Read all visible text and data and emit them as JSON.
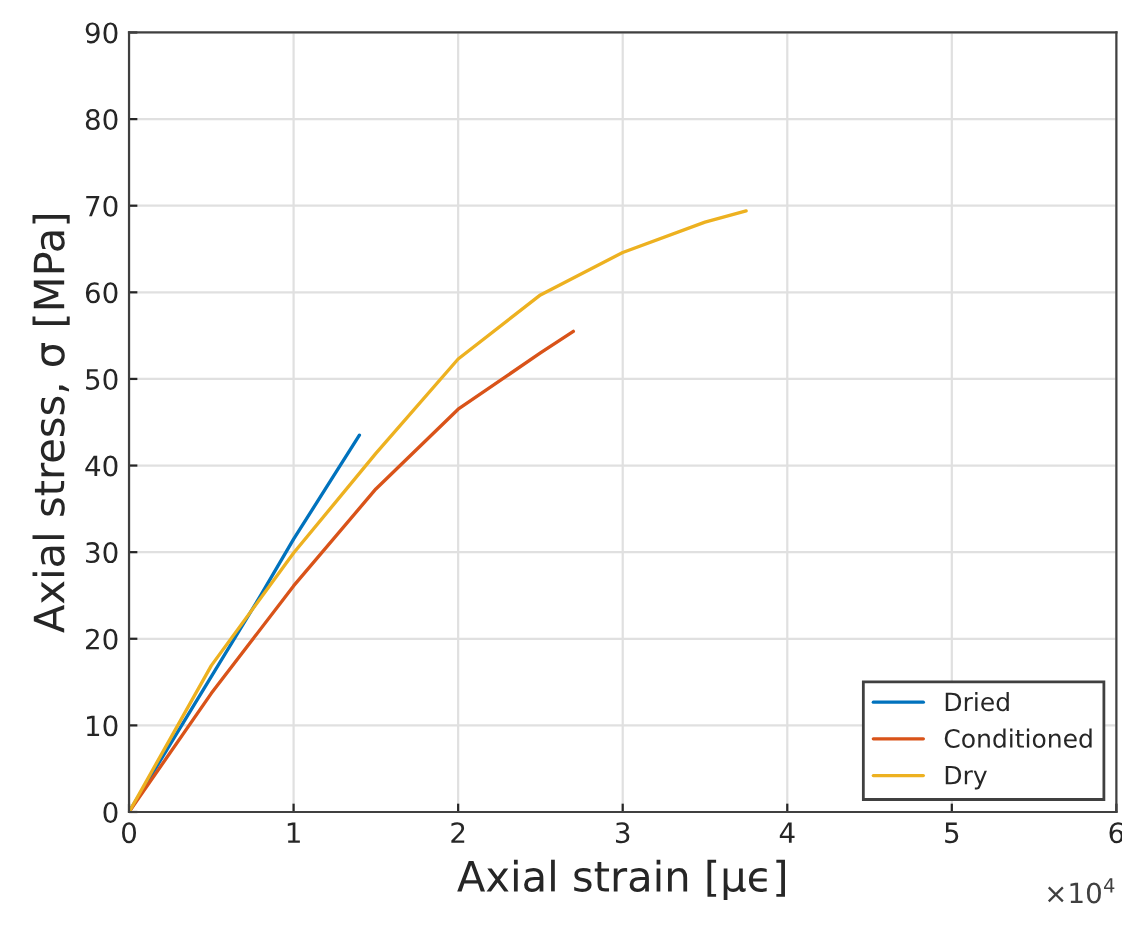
{
  "chart_data": {
    "type": "line",
    "xlabel": "Axial strain [μϵ]",
    "ylabel": "Axial stress, σ [MPa]",
    "xlim": [
      0,
      6
    ],
    "ylim": [
      0,
      90
    ],
    "xticks": [
      0,
      1,
      2,
      3,
      4,
      5,
      6
    ],
    "yticks": [
      0,
      10,
      20,
      30,
      40,
      50,
      60,
      70,
      80,
      90
    ],
    "annotations": [
      "×10$^{4}$"
    ],
    "grid": true,
    "legend": "bottom right",
    "line_style": "solid",
    "marker": "none",
    "series": [
      {
        "name": "Dried",
        "color": "#0072bd",
        "x": [
          0,
          0.4,
          0.8,
          1.0,
          1.2,
          1.4
        ],
        "values": [
          0,
          12.5,
          25,
          31.5,
          37.5,
          43.5
        ]
      },
      {
        "name": "Conditioned",
        "color": "#d95319",
        "x": [
          0,
          0.5,
          1,
          1.5,
          2,
          2.5,
          2.7
        ],
        "values": [
          0,
          13.7,
          26.1,
          37.3,
          46.5,
          53,
          55.5
        ]
      },
      {
        "name": "Dry",
        "color": "#edb120",
        "x": [
          0,
          0.5,
          1,
          1.5,
          2,
          2.5,
          3,
          3.5,
          3.75
        ],
        "values": [
          0,
          16.9,
          29.9,
          41.4,
          52.3,
          59.7,
          64.6,
          68.1,
          69.4
        ]
      }
    ]
  }
}
